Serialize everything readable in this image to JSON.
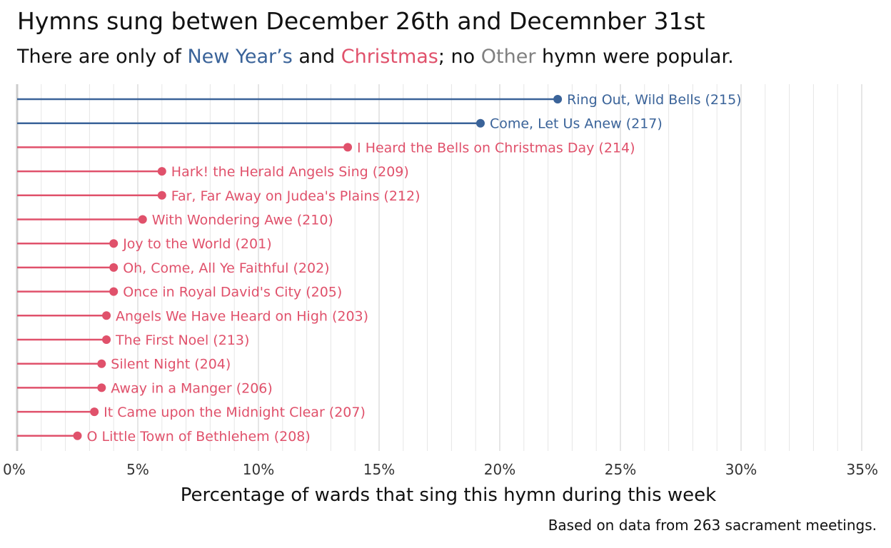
{
  "title": "Hymns sung betwen December 26th and Decemnber 31st",
  "subtitle": {
    "part1": "There are only of ",
    "new_years": "New Year’s",
    "part2": " and ",
    "christmas": "Christmas",
    "part3": "; no ",
    "other": "Other",
    "part4": " hymn were popular."
  },
  "caption": "Based on data from 263 sacrament meetings.",
  "colors": {
    "new_years": "#3a6399",
    "christmas": "#e0516b",
    "other": "#7f7f7f",
    "grid": "#e6e6e6",
    "axis": "#cccccc"
  },
  "chart_data": {
    "type": "lollipop",
    "xlabel": "Percentage of wards that sing this hymn during this week",
    "xlim": [
      0,
      35
    ],
    "xticks": [
      0,
      5,
      10,
      15,
      20,
      25,
      30,
      35
    ],
    "xtick_labels": [
      "0%",
      "5%",
      "10%",
      "15%",
      "20%",
      "25%",
      "30%",
      "35%"
    ],
    "minor_grid_step": 1,
    "grid": true,
    "items": [
      {
        "label": "Ring Out, Wild Bells (215)",
        "value": 22.4,
        "category": "new_years"
      },
      {
        "label": "Come, Let Us Anew (217)",
        "value": 19.2,
        "category": "new_years"
      },
      {
        "label": "I Heard the Bells on Christmas Day (214)",
        "value": 13.7,
        "category": "christmas"
      },
      {
        "label": "Hark! the Herald Angels Sing (209)",
        "value": 6.0,
        "category": "christmas"
      },
      {
        "label": "Far, Far Away on Judea's Plains (212)",
        "value": 6.0,
        "category": "christmas"
      },
      {
        "label": "With Wondering Awe (210)",
        "value": 5.2,
        "category": "christmas"
      },
      {
        "label": "Joy to the World (201)",
        "value": 4.0,
        "category": "christmas"
      },
      {
        "label": "Oh, Come, All Ye Faithful (202)",
        "value": 4.0,
        "category": "christmas"
      },
      {
        "label": "Once in Royal David's City (205)",
        "value": 4.0,
        "category": "christmas"
      },
      {
        "label": "Angels We Have Heard on High (203)",
        "value": 3.7,
        "category": "christmas"
      },
      {
        "label": "The First Noel (213)",
        "value": 3.7,
        "category": "christmas"
      },
      {
        "label": "Silent Night (204)",
        "value": 3.5,
        "category": "christmas"
      },
      {
        "label": "Away in a Manger (206)",
        "value": 3.5,
        "category": "christmas"
      },
      {
        "label": "It Came upon the Midnight Clear (207)",
        "value": 3.2,
        "category": "christmas"
      },
      {
        "label": "O Little Town of Bethlehem (208)",
        "value": 2.5,
        "category": "christmas"
      }
    ]
  }
}
